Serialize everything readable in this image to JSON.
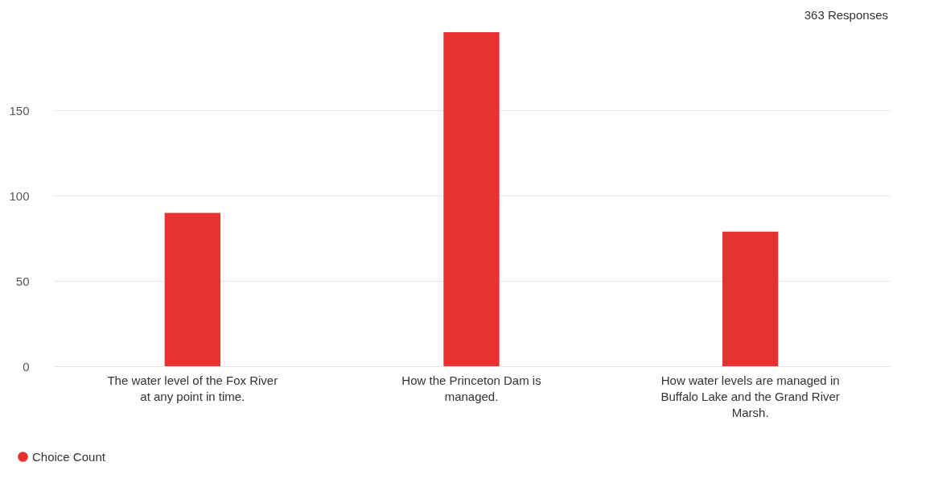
{
  "chart_data": {
    "type": "bar",
    "categories": [
      "The water level of the Fox River at any point in time.",
      "How the Princeton Dam is managed.",
      "How water levels are managed in Buffalo Lake and the Grand River Marsh."
    ],
    "series": [
      {
        "name": "Choice Count",
        "color": "#e8322f",
        "values": [
          90,
          196,
          79
        ]
      }
    ],
    "ylim": [
      0,
      196
    ],
    "yticks": [
      0,
      50,
      100,
      150
    ],
    "grid": "y",
    "legend": "bottom left",
    "annotations": [
      "363 Responses"
    ]
  }
}
